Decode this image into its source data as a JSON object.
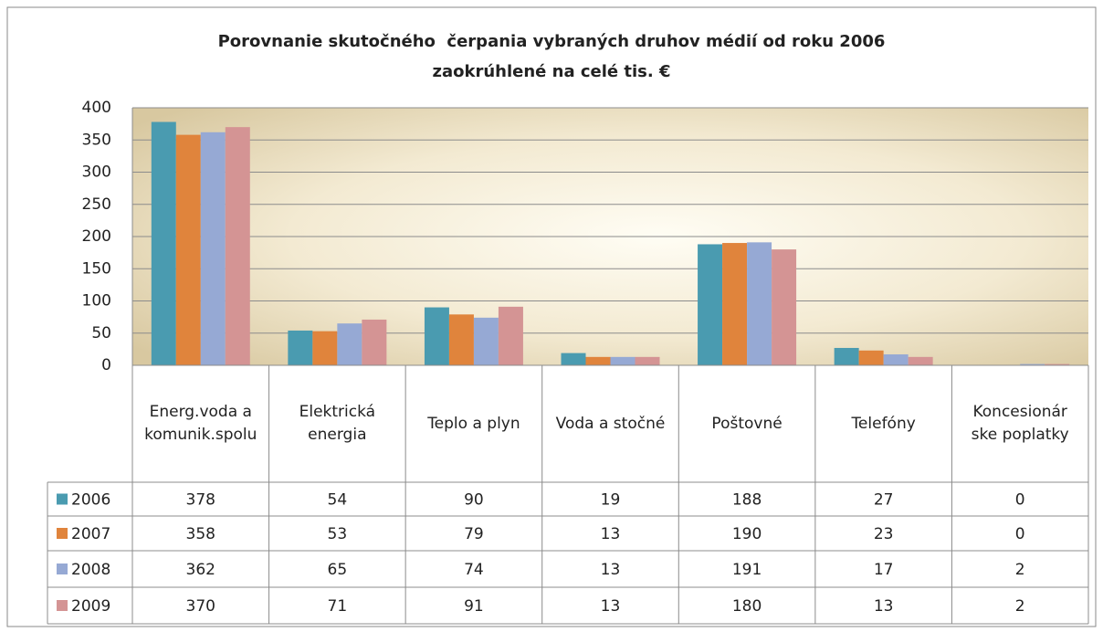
{
  "chart_data": {
    "type": "bar",
    "title": "Porovnanie skutočného  čerpania vybraných druhov médií od roku 2006",
    "subtitle": "zaokrúhlené na celé tis. €",
    "categories": [
      "Energ.voda a komunik.spolu",
      "Elektrická energia",
      "Teplo a plyn",
      "Voda a stočné",
      "Poštovné",
      "Telefóny",
      "Koncesionár ske poplatky"
    ],
    "series": [
      {
        "name": "2006",
        "color": "#4a9bb0",
        "values": [
          378,
          54,
          90,
          19,
          188,
          27,
          0
        ]
      },
      {
        "name": "2007",
        "color": "#e0843c",
        "values": [
          358,
          53,
          79,
          13,
          190,
          23,
          0
        ]
      },
      {
        "name": "2008",
        "color": "#96a9d4",
        "values": [
          362,
          65,
          74,
          13,
          191,
          17,
          2
        ]
      },
      {
        "name": "2009",
        "color": "#d49494",
        "values": [
          370,
          71,
          91,
          13,
          180,
          13,
          2
        ]
      }
    ],
    "ylim": [
      0,
      400
    ],
    "yticks": [
      0,
      50,
      100,
      150,
      200,
      250,
      300,
      350,
      400
    ],
    "grid": true
  }
}
